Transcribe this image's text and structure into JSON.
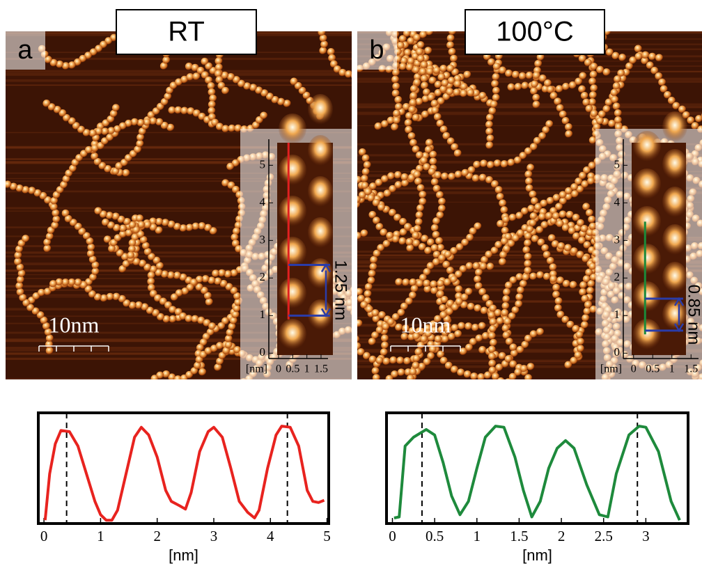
{
  "panels": [
    {
      "letter": "a",
      "title": "RT",
      "scale_bar": "10nm",
      "inset": {
        "unit": "[nm]",
        "xlim": [
          -0.05,
          1.55
        ],
        "ylim": [
          -0.05,
          5.6
        ],
        "xticks": [
          0,
          0.5,
          1,
          1.5
        ],
        "yticks": [
          0,
          1,
          2,
          3,
          4,
          5
        ],
        "trace": {
          "x": 0.35,
          "from": 0.9,
          "to": 5.6,
          "color": "#e02020"
        },
        "measure": {
          "label": "1.25 nm",
          "from": 1.0,
          "to": 2.35,
          "color": "#2a3ca8"
        }
      }
    },
    {
      "letter": "b",
      "title": "100°C",
      "scale_bar": "10nm",
      "inset": {
        "unit": "[nm]",
        "xlim": [
          -0.05,
          1.55
        ],
        "ylim": [
          -0.05,
          5.6
        ],
        "xticks": [
          0,
          0.5,
          1,
          1.5
        ],
        "yticks": [
          0,
          1,
          2,
          3,
          4,
          5
        ],
        "trace": {
          "x": 0.3,
          "from": 0.5,
          "to": 3.5,
          "color": "#1a8a3a"
        },
        "measure": {
          "label": "0.85 nm",
          "from": 0.6,
          "to": 1.45,
          "color": "#2a3ca8"
        }
      }
    }
  ],
  "chart_data": [
    {
      "type": "line",
      "x_label": "[nm]",
      "color": "#e8231f",
      "xlim": [
        -0.1,
        5.03
      ],
      "ylim": [
        0,
        1
      ],
      "xticks": [
        0,
        1,
        2,
        3,
        4,
        5
      ],
      "reference_lines": [
        0.4,
        4.3
      ],
      "x": [
        0.02,
        0.1,
        0.2,
        0.3,
        0.45,
        0.6,
        0.75,
        0.9,
        1.0,
        1.1,
        1.2,
        1.3,
        1.45,
        1.6,
        1.72,
        1.85,
        2.0,
        2.15,
        2.25,
        2.4,
        2.5,
        2.6,
        2.75,
        2.9,
        3.0,
        3.15,
        3.3,
        3.45,
        3.6,
        3.72,
        3.8,
        3.95,
        4.1,
        4.2,
        4.35,
        4.5,
        4.65,
        4.75,
        4.85,
        4.95
      ],
      "values": [
        0.03,
        0.45,
        0.72,
        0.84,
        0.83,
        0.7,
        0.45,
        0.2,
        0.08,
        0.03,
        0.03,
        0.12,
        0.45,
        0.78,
        0.87,
        0.8,
        0.6,
        0.3,
        0.2,
        0.16,
        0.13,
        0.28,
        0.65,
        0.83,
        0.87,
        0.78,
        0.5,
        0.2,
        0.1,
        0.05,
        0.12,
        0.5,
        0.8,
        0.88,
        0.87,
        0.7,
        0.3,
        0.2,
        0.19,
        0.21
      ]
    },
    {
      "type": "line",
      "x_label": "[nm]",
      "color": "#1e8a3c",
      "xlim": [
        -0.07,
        3.5
      ],
      "ylim": [
        0,
        1
      ],
      "xticks": [
        0,
        0.5,
        1,
        1.5,
        2,
        2.5,
        3
      ],
      "reference_lines": [
        0.35,
        2.9
      ],
      "x": [
        0.02,
        0.08,
        0.15,
        0.25,
        0.4,
        0.5,
        0.6,
        0.7,
        0.8,
        0.9,
        1.0,
        1.1,
        1.22,
        1.32,
        1.45,
        1.55,
        1.65,
        1.75,
        1.85,
        1.95,
        2.05,
        2.15,
        2.3,
        2.45,
        2.55,
        2.65,
        2.8,
        2.92,
        3.0,
        3.15,
        3.3,
        3.4
      ],
      "values": [
        0.05,
        0.06,
        0.7,
        0.78,
        0.85,
        0.8,
        0.55,
        0.25,
        0.08,
        0.2,
        0.5,
        0.78,
        0.88,
        0.87,
        0.6,
        0.3,
        0.06,
        0.2,
        0.5,
        0.68,
        0.75,
        0.68,
        0.35,
        0.08,
        0.06,
        0.45,
        0.8,
        0.88,
        0.87,
        0.65,
        0.2,
        0.03
      ]
    }
  ]
}
